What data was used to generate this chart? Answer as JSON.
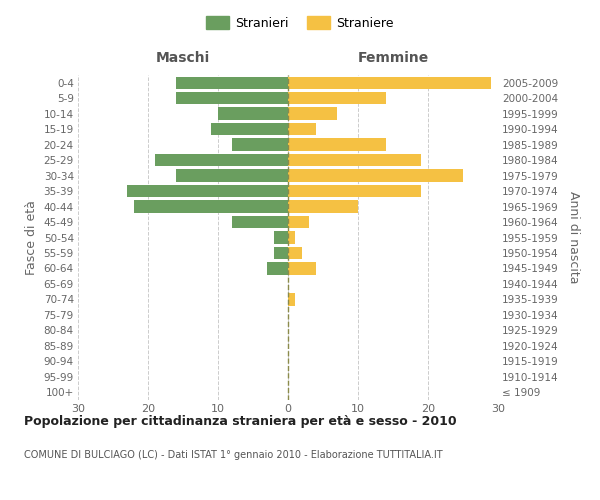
{
  "age_groups": [
    "100+",
    "95-99",
    "90-94",
    "85-89",
    "80-84",
    "75-79",
    "70-74",
    "65-69",
    "60-64",
    "55-59",
    "50-54",
    "45-49",
    "40-44",
    "35-39",
    "30-34",
    "25-29",
    "20-24",
    "15-19",
    "10-14",
    "5-9",
    "0-4"
  ],
  "birth_years": [
    "≤ 1909",
    "1910-1914",
    "1915-1919",
    "1920-1924",
    "1925-1929",
    "1930-1934",
    "1935-1939",
    "1940-1944",
    "1945-1949",
    "1950-1954",
    "1955-1959",
    "1960-1964",
    "1965-1969",
    "1970-1974",
    "1975-1979",
    "1980-1984",
    "1985-1989",
    "1990-1994",
    "1995-1999",
    "2000-2004",
    "2005-2009"
  ],
  "males": [
    0,
    0,
    0,
    0,
    0,
    0,
    0,
    0,
    3,
    2,
    2,
    8,
    22,
    23,
    16,
    19,
    8,
    11,
    10,
    16,
    16
  ],
  "females": [
    0,
    0,
    0,
    0,
    0,
    0,
    1,
    0,
    4,
    2,
    1,
    3,
    10,
    19,
    25,
    19,
    14,
    4,
    7,
    14,
    29
  ],
  "male_color": "#6a9e5f",
  "female_color": "#f5c143",
  "background_color": "#ffffff",
  "grid_color": "#cccccc",
  "title": "Popolazione per cittadinanza straniera per età e sesso - 2010",
  "subtitle": "COMUNE DI BULCIAGO (LC) - Dati ISTAT 1° gennaio 2010 - Elaborazione TUTTITALIA.IT",
  "left_label": "Maschi",
  "right_label": "Femmine",
  "y_left_label": "Fasce di età",
  "y_right_label": "Anni di nascita",
  "legend_male": "Stranieri",
  "legend_female": "Straniere",
  "xlim": 30,
  "bar_height": 0.8
}
